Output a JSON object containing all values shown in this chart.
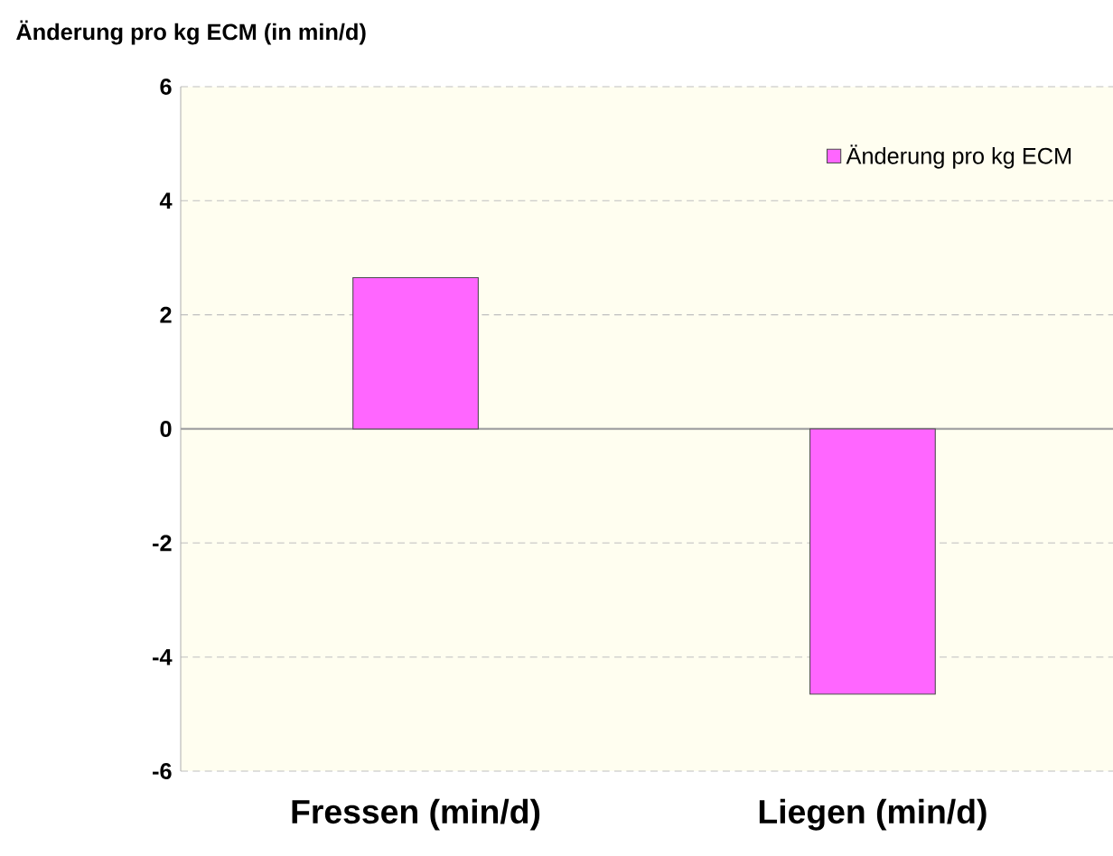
{
  "chart_data": {
    "type": "bar",
    "ylabel": "Änderung pro kg ECM (in min/d)",
    "categories": [
      "Fressen (min/d)",
      "Liegen (min/d)"
    ],
    "series": [
      {
        "name": "Änderung pro kg ECM",
        "color": "#ff66ff",
        "values": [
          2.65,
          -4.65
        ]
      }
    ],
    "ylim": [
      -6,
      6
    ],
    "yticks": [
      -6,
      -4,
      -2,
      0,
      2,
      4,
      6
    ],
    "grid": "y",
    "legend": "top right"
  }
}
